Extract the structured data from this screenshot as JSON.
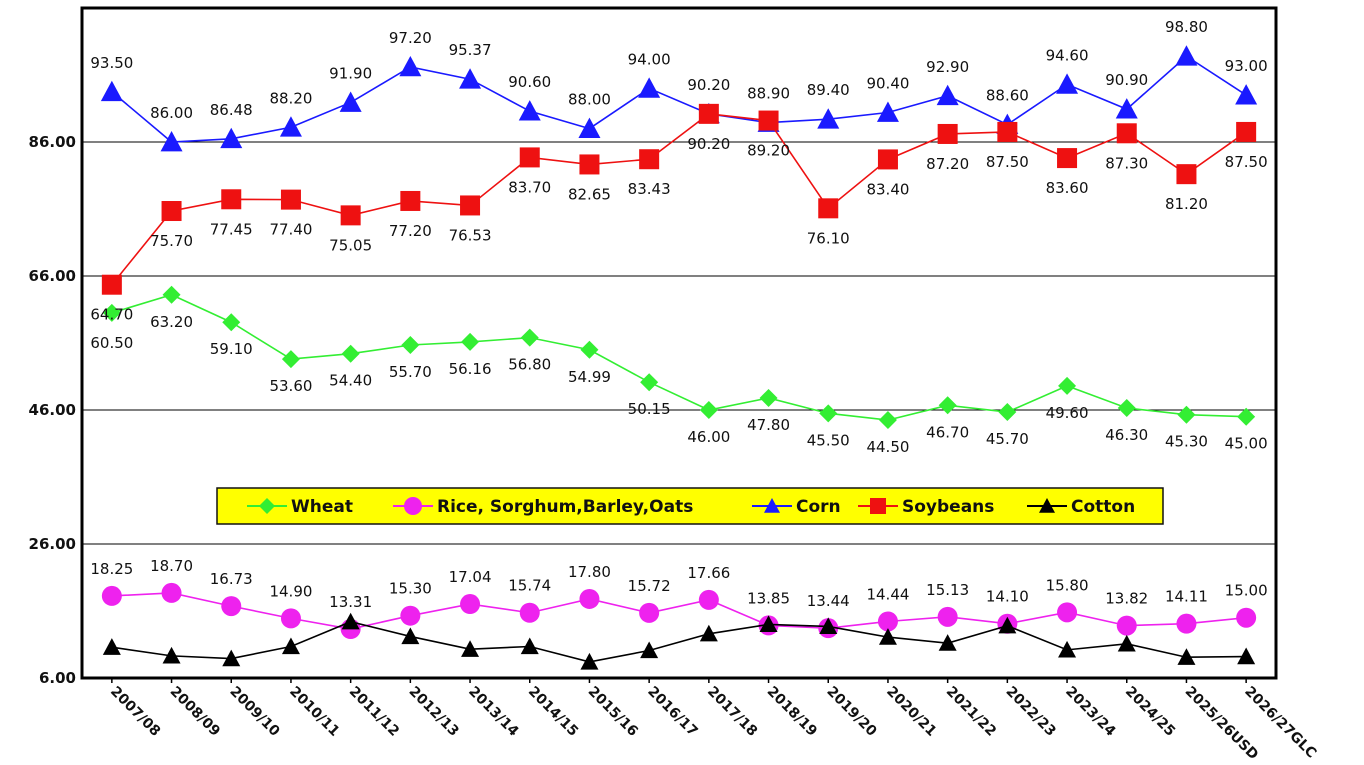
{
  "chart_data": {
    "type": "line",
    "categories": [
      "2007/08",
      "2008/09",
      "2009/10",
      "2010/11",
      "2011/12",
      "2012/13",
      "2013/14",
      "2014/15",
      "2015/16",
      "2016/17",
      "2017/18",
      "2018/19",
      "2019/20",
      "2020/21",
      "2021/22",
      "2022/23",
      "2023/24",
      "2024/25",
      "2025/26USD",
      "2026/27GLC"
    ],
    "ylim": [
      6,
      106
    ],
    "yticks": [
      "6.00",
      "26.00",
      "46.00",
      "66.00",
      "86.00"
    ],
    "ytick_values": [
      6,
      26,
      46,
      66,
      86
    ],
    "grid": true,
    "legend_position": "center",
    "series": [
      {
        "name": "Wheat",
        "color": "#33ee33",
        "marker": "diamond",
        "values": [
          60.5,
          63.2,
          59.1,
          53.6,
          54.4,
          55.7,
          56.16,
          56.8,
          54.99,
          50.15,
          46.0,
          47.8,
          45.5,
          44.5,
          46.7,
          45.7,
          49.6,
          46.3,
          45.3,
          45.0
        ],
        "labels": [
          "60.50",
          "63.20",
          "59.10",
          "53.60",
          "54.40",
          "55.70",
          "56.16",
          "56.80",
          "54.99",
          "50.15",
          "46.00",
          "47.80",
          "45.50",
          "44.50",
          "46.70",
          "45.70",
          "49.60",
          "46.30",
          "45.30",
          "45.00"
        ]
      },
      {
        "name": "Rice, Sorghum,Barley,Oats",
        "color": "#ee22ee",
        "marker": "circle",
        "values": [
          18.25,
          18.7,
          16.73,
          14.9,
          13.31,
          15.3,
          17.04,
          15.74,
          17.8,
          15.72,
          17.66,
          13.85,
          13.44,
          14.44,
          15.13,
          14.1,
          15.8,
          13.82,
          14.11,
          15.0
        ],
        "labels": [
          "18.25",
          "18.70",
          "16.73",
          "14.90",
          "13.31",
          "15.30",
          "17.04",
          "15.74",
          "17.80",
          "15.72",
          "17.66",
          "13.85",
          "13.44",
          "14.44",
          "15.13",
          "14.10",
          "15.80",
          "13.82",
          "14.11",
          "15.00"
        ]
      },
      {
        "name": "Corn",
        "color": "#1a1aff",
        "marker": "triangle",
        "values": [
          93.5,
          86.0,
          86.48,
          88.2,
          91.9,
          97.2,
          95.37,
          90.6,
          88.0,
          94.0,
          90.2,
          88.9,
          89.4,
          90.4,
          92.9,
          88.6,
          94.6,
          90.9,
          98.8,
          93.0
        ],
        "labels": [
          "93.50",
          "86.00",
          "86.48",
          "88.20",
          "91.90",
          "97.20",
          "95.37",
          "90.60",
          "88.00",
          "94.00",
          "90.20",
          "88.90",
          "89.40",
          "90.40",
          "92.90",
          "88.60",
          "94.60",
          "90.90",
          "98.80",
          "93.00"
        ]
      },
      {
        "name": "Soybeans",
        "color": "#ee1111",
        "marker": "square",
        "values": [
          64.7,
          75.7,
          77.45,
          77.4,
          75.05,
          77.2,
          76.53,
          83.7,
          82.65,
          83.43,
          90.2,
          89.2,
          76.1,
          83.4,
          87.2,
          87.5,
          83.6,
          87.3,
          81.2,
          87.5
        ],
        "labels": [
          "64.70",
          "75.70",
          "77.45",
          "77.40",
          "75.05",
          "77.20",
          "76.53",
          "83.70",
          "82.65",
          "83.43",
          "90.20",
          "89.20",
          "76.10",
          "83.40",
          "87.20",
          "87.50",
          "83.60",
          "87.30",
          "81.20",
          "87.50"
        ]
      },
      {
        "name": "Cotton",
        "color": "#000000",
        "marker": "triangle",
        "values": [
          10.6,
          9.3,
          8.9,
          10.7,
          14.4,
          12.2,
          10.3,
          10.7,
          8.4,
          10.1,
          12.6,
          14.0,
          13.7,
          12.1,
          11.2,
          13.8,
          10.2,
          11.1,
          9.1,
          9.2
        ],
        "labels": []
      }
    ]
  }
}
